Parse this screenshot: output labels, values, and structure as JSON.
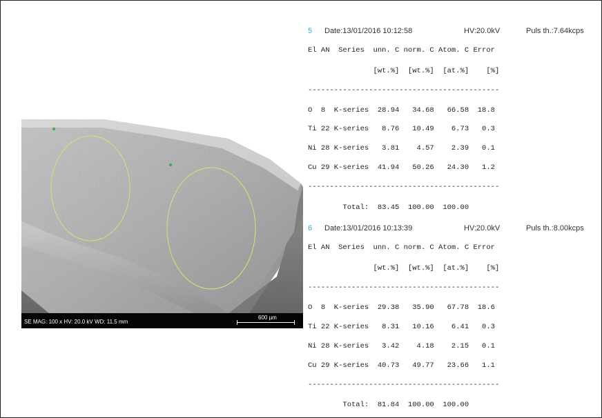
{
  "sem": {
    "info": "SE  MAG: 100 x  HV: 20.0 kV  WD: 11.5 mm",
    "scale_label": "600 µm"
  },
  "reports": [
    {
      "number": "5",
      "date": "Date:13/01/2016 10:12:58",
      "hv": "HV:20.0kV",
      "puls": "Puls th.:7.64kcps",
      "header1": "El AN  Series  unn. C norm. C Atom. C Error",
      "header2": "               [wt.%]  [wt.%]  [at.%]    [%]",
      "separator": "--------------------------------------------",
      "rows": [
        "O  8  K-series  28.94   34.68   66.58  18.8",
        "Ti 22 K-series   8.76   10.49    6.73   0.3",
        "Ni 28 K-series   3.81    4.57    2.39   0.1",
        "Cu 29 K-series  41.94   50.26   24.30   1.2"
      ],
      "total": "        Total:  83.45  100.00  100.00"
    },
    {
      "number": "6",
      "date": "Date:13/01/2016 10:13:39",
      "hv": "HV:20.0kV",
      "puls": "Puls th.:8.00kcps",
      "header1": "El AN  Series  unn. C norm. C Atom. C Error",
      "header2": "               [wt.%]  [wt.%]  [at.%]    [%]",
      "separator": "--------------------------------------------",
      "rows": [
        "O  8  K-series  29.38   35.90   67.78  18.6",
        "Ti 22 K-series   8.31   10.16    6.41   0.3",
        "Ni 28 K-series   3.42    4.18    2.15   0.1",
        "Cu 29 K-series  40.73   49.77   23.66   1.1"
      ],
      "total": "        Total:  81.84  100.00  100.00"
    }
  ],
  "colors": {
    "report_number": "#39a8d9",
    "ellipse": "#d8d67a",
    "marker": "#3fae5a"
  }
}
